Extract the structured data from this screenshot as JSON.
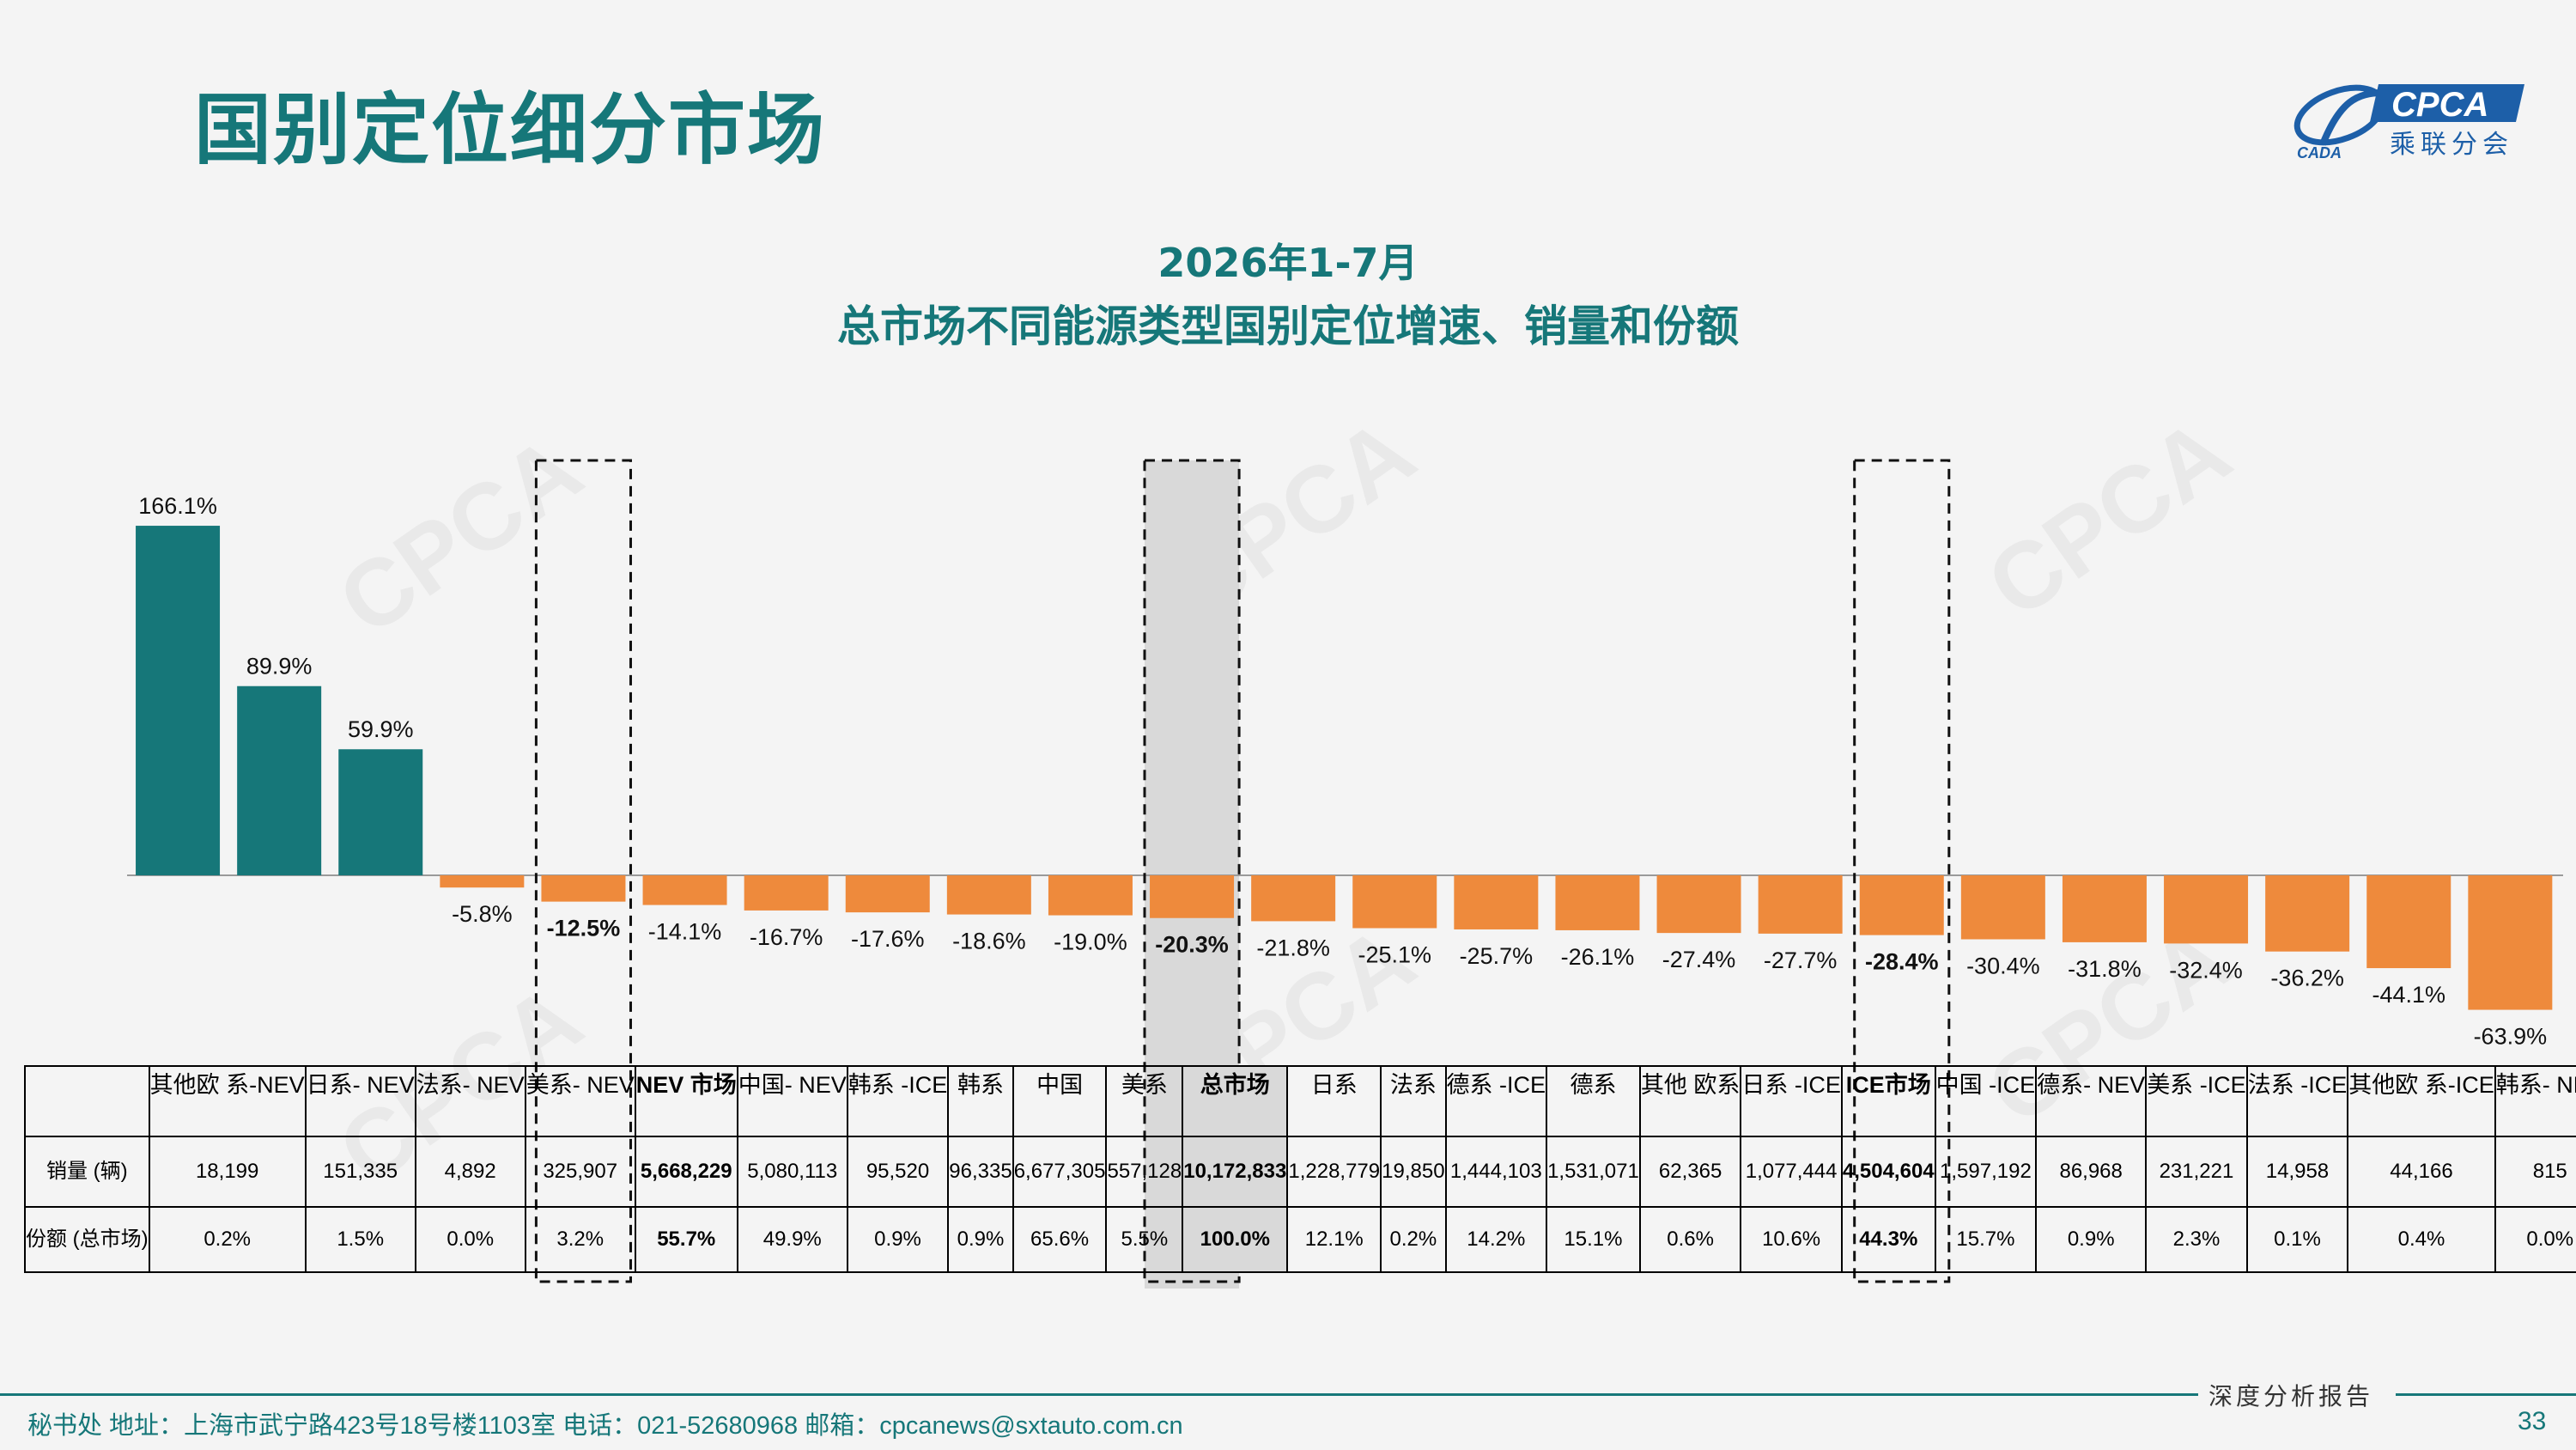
{
  "header": {
    "title": "国别定位细分市场",
    "logo_text": "CPCA",
    "logo_sub": "乘联分会",
    "logo_small": "CADA"
  },
  "watermark": {
    "text": "CPCA",
    "sub": "乘联分会"
  },
  "chart_title_line1": "2026年1-7月",
  "chart_title_line2": "总市场不同能源类型国别定位增速、销量和份额",
  "colors": {
    "positive": "#167779",
    "negative": "#ee8a3c",
    "highlight_bg": "#d9d9d9",
    "accent": "#167779"
  },
  "chart_data": {
    "type": "bar",
    "title": "2026年1-7月 总市场不同能源类型国别定位增速、销量和份额",
    "categories": [
      "其他欧系-NEV",
      "日系-NEV",
      "法系-NEV",
      "美系-NEV",
      "NEV市场",
      "中国-NEV",
      "韩系-ICE",
      "韩系",
      "中国",
      "美系",
      "总市场",
      "日系",
      "法系",
      "德系-ICE",
      "德系",
      "其他欧系",
      "日系-ICE",
      "ICE市场",
      "中国-ICE",
      "德系-NEV",
      "美系-ICE",
      "法系-ICE",
      "其他欧系-ICE",
      "韩系-NEV"
    ],
    "category_display": [
      "其他欧\n系-NEV",
      "日系-\nNEV",
      "法系-\nNEV",
      "美系-\nNEV",
      "NEV\n市场",
      "中国-\nNEV",
      "韩系\n-ICE",
      "韩系",
      "中国",
      "美系",
      "总市场",
      "日系",
      "法系",
      "德系\n-ICE",
      "德系",
      "其他\n欧系",
      "日系\n-ICE",
      "ICE市场",
      "中国\n-ICE",
      "德系-\nNEV",
      "美系\n-ICE",
      "法系\n-ICE",
      "其他欧\n系-ICE",
      "韩系-\nNEV"
    ],
    "growth_labels": [
      "166.1%",
      "89.9%",
      "59.9%",
      "-5.8%",
      "-12.5%",
      "-14.1%",
      "-16.7%",
      "-17.6%",
      "-18.6%",
      "-19.0%",
      "-20.3%",
      "-21.8%",
      "-25.1%",
      "-25.7%",
      "-26.1%",
      "-27.4%",
      "-27.7%",
      "-28.4%",
      "-30.4%",
      "-31.8%",
      "-32.4%",
      "-36.2%",
      "-44.1%",
      "-63.9%"
    ],
    "series": [
      {
        "values": [
          166.1,
          89.9,
          59.9,
          -5.8,
          -12.5,
          -14.1,
          -16.7,
          -17.6,
          -18.6,
          -19.0,
          -20.3,
          -21.8,
          -25.1,
          -25.7,
          -26.1,
          -27.4,
          -27.7,
          -28.4,
          -30.4,
          -31.8,
          -32.4,
          -36.2,
          -44.1,
          -63.9
        ]
      }
    ],
    "highlighted": [
      "NEV市场",
      "总市场",
      "ICE市场"
    ],
    "ylim": [
      -66,
      200
    ],
    "unit": "%",
    "table": {
      "row_headers": [
        "销量\n(辆)",
        "份额\n(总市场)"
      ],
      "volume": [
        "18,199",
        "151,335",
        "4,892",
        "325,907",
        "5,668,229",
        "5,080,113",
        "95,520",
        "96,335",
        "6,677,305",
        "557,128",
        "10,172,833",
        "1,228,779",
        "19,850",
        "1,444,103",
        "1,531,071",
        "62,365",
        "1,077,444",
        "4,504,604",
        "1,597,192",
        "86,968",
        "231,221",
        "14,958",
        "44,166",
        "815"
      ],
      "share": [
        "0.2%",
        "1.5%",
        "0.0%",
        "3.2%",
        "55.7%",
        "49.9%",
        "0.9%",
        "0.9%",
        "65.6%",
        "5.5%",
        "100.0%",
        "12.1%",
        "0.2%",
        "14.2%",
        "15.1%",
        "0.6%",
        "10.6%",
        "44.3%",
        "15.7%",
        "0.9%",
        "2.3%",
        "0.1%",
        "0.4%",
        "0.0%"
      ]
    }
  },
  "footer": {
    "tag": "深度分析报告",
    "contact": "秘书处   地址：上海市武宁路423号18号楼1103室   电话：021-52680968   邮箱：cpcanews@sxtauto.com.cn",
    "page_number": "33"
  }
}
